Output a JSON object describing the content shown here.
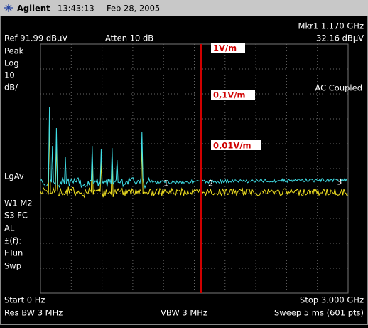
{
  "header": {
    "brand": "Agilent",
    "time": "13:43:13",
    "date": "Feb 28, 2005"
  },
  "status": {
    "reference": "Ref 91.99 dBµV",
    "attenuation": "Atten 10 dB",
    "marker_frequency": "Mkr1  1.170 GHz",
    "marker_amplitude": "32.16 dBµV"
  },
  "side_labels": [
    "Peak",
    "Log",
    "10",
    "dB/",
    "LgAv",
    "W1  M2",
    "S3  FC",
    "AL",
    "£(f):",
    "FTun",
    "Swp"
  ],
  "coupling": "AC Coupled",
  "field_labels": [
    "1V/m",
    "0,1V/m",
    "0,01V/m"
  ],
  "markers": [
    "1",
    "2",
    "3"
  ],
  "footer": {
    "start": "Start 0 Hz",
    "stop": "Stop 3.000 GHz",
    "resolution_bandwidth": "Res BW 3 MHz",
    "video_bandwidth": "VBW 3 MHz",
    "sweep": "Sweep 5 ms (601 pts)"
  }
}
